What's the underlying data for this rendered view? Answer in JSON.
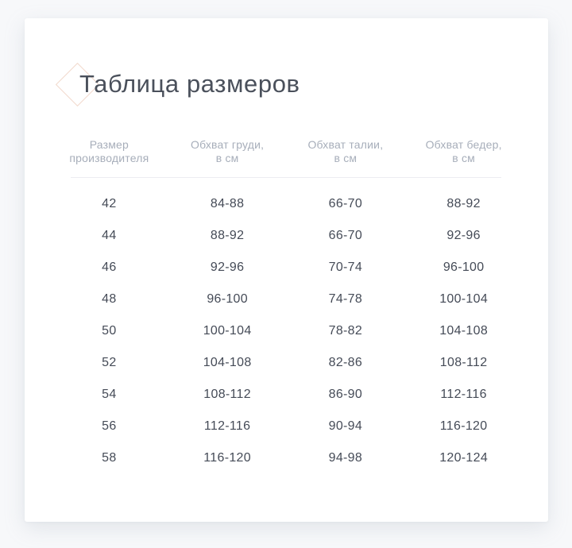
{
  "page": {
    "title": "Таблица размеров"
  },
  "icons": {
    "title_marker": "diamond-outline-icon"
  },
  "table": {
    "headers": [
      "Размер\nпроизводителя",
      "Обхват груди,\nв см",
      "Обхват талии,\nв см",
      "Обхват бедер,\nв см"
    ],
    "rows": [
      [
        "42",
        "84-88",
        "66-70",
        "88-92"
      ],
      [
        "44",
        "88-92",
        "66-70",
        "92-96"
      ],
      [
        "46",
        "92-96",
        "70-74",
        "96-100"
      ],
      [
        "48",
        "96-100",
        "74-78",
        "100-104"
      ],
      [
        "50",
        "100-104",
        "78-82",
        "104-108"
      ],
      [
        "52",
        "104-108",
        "82-86",
        "108-112"
      ],
      [
        "54",
        "108-112",
        "86-90",
        "112-116"
      ],
      [
        "56",
        "112-116",
        "90-94",
        "116-120"
      ],
      [
        "58",
        "116-120",
        "94-98",
        "120-124"
      ]
    ]
  },
  "colors": {
    "accent_diamond": "#f2d9cc",
    "title_text": "#4a505b",
    "header_text": "#a7aeba",
    "cell_text": "#454b57",
    "divider": "#ececf1",
    "card_bg": "#ffffff",
    "page_bg": "#f7f8fa"
  }
}
